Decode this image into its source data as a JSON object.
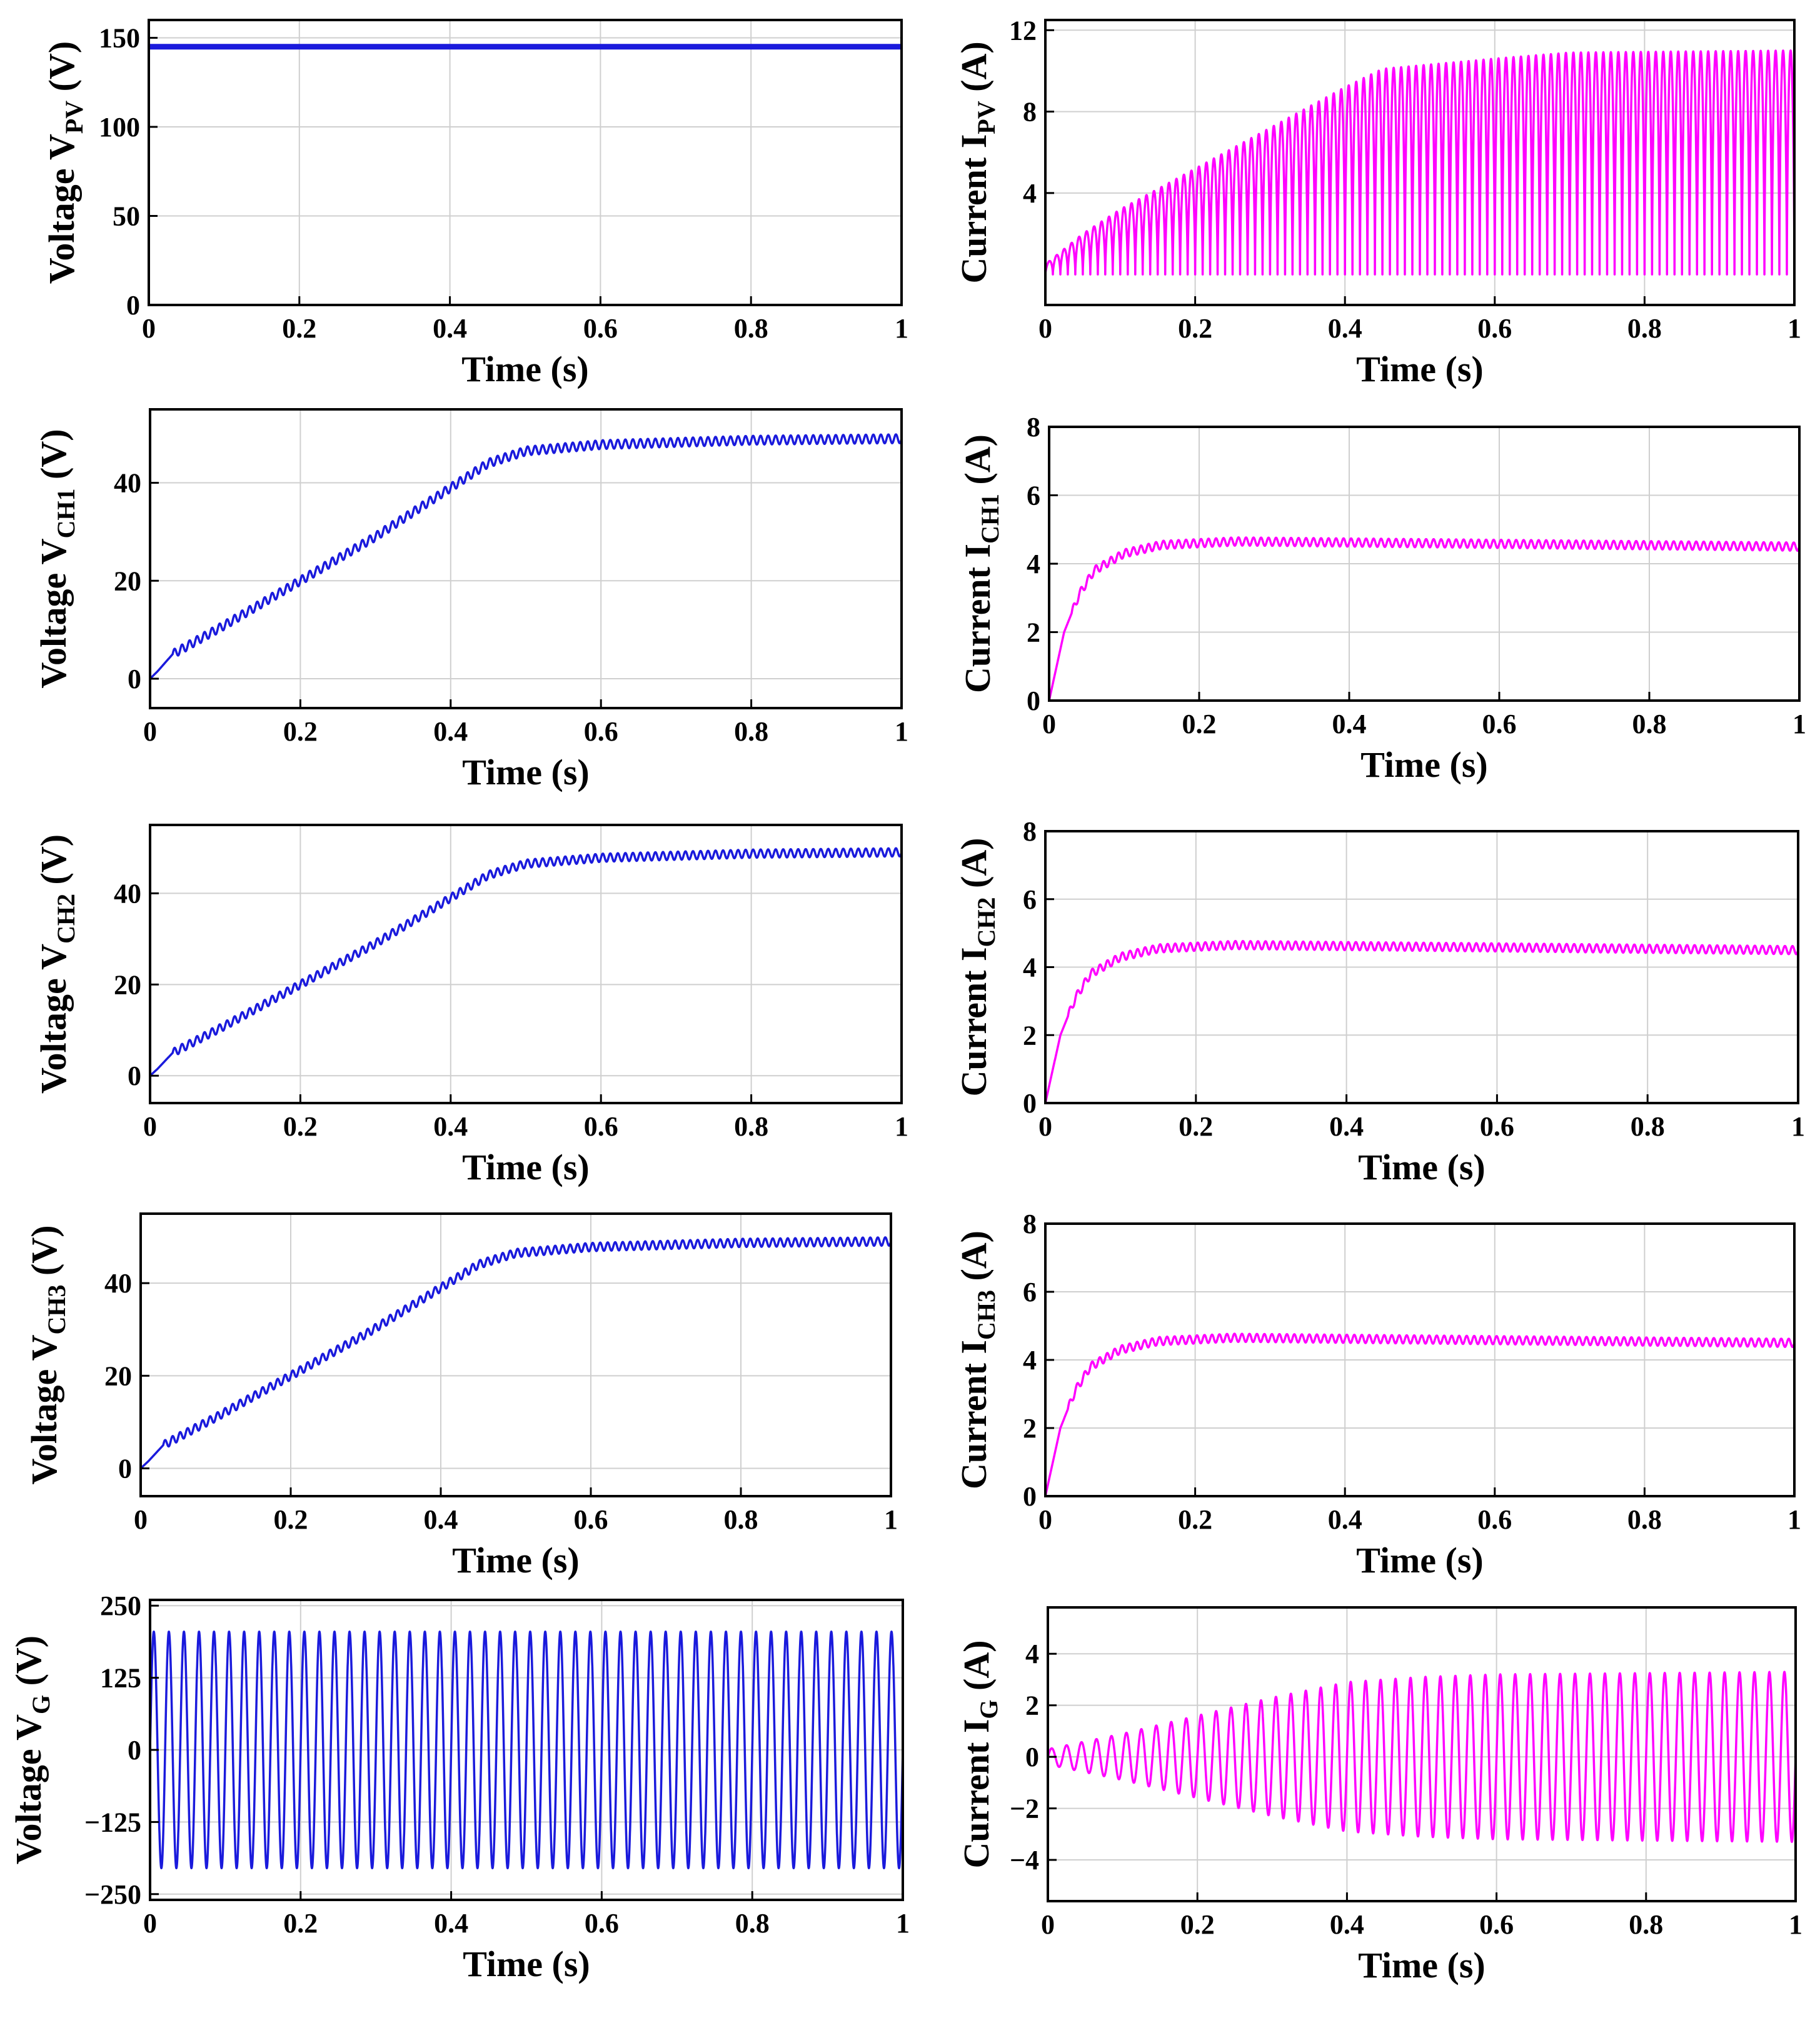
{
  "chart_data": [
    {
      "id": "vpv",
      "type": "line",
      "xlabel": "Time (s)",
      "ylabel": {
        "main": "Voltage V",
        "sub": "PV",
        "unit": " (V)"
      },
      "x_ticks": [
        "0",
        "0.2",
        "0.4",
        "0.6",
        "0.8",
        "1"
      ],
      "y_ticks": [
        {
          "v": 0,
          "label": "0"
        },
        {
          "v": 50,
          "label": "50"
        },
        {
          "v": 100,
          "label": "100"
        },
        {
          "v": 150,
          "label": "150"
        }
      ],
      "xlim": [
        0,
        1
      ],
      "ylim": [
        0,
        160
      ],
      "color": "#1a1adc",
      "series": [
        {
          "signal": "constant",
          "value": 145
        }
      ]
    },
    {
      "id": "ipv",
      "type": "line",
      "xlabel": "Time (s)",
      "ylabel": {
        "main": "Current I",
        "sub": "PV",
        "unit": " (A)"
      },
      "x_ticks": [
        "0",
        "0.2",
        "0.4",
        "0.6",
        "0.8",
        "1"
      ],
      "y_ticks": [
        {
          "v": 4,
          "label": "4"
        },
        {
          "v": 8,
          "label": "8"
        },
        {
          "v": 12,
          "label": "12"
        }
      ],
      "xlim": [
        0,
        1
      ],
      "ylim": [
        -1.5,
        12.5
      ],
      "color": "#ff00ff",
      "series": [
        {
          "signal": "pulsed_ripple",
          "frequency_hz": 100,
          "low": 0,
          "envelope": [
            [
              0,
              0.5
            ],
            [
              0.05,
              2
            ],
            [
              0.1,
              3.2
            ],
            [
              0.2,
              5.2
            ],
            [
              0.3,
              7.2
            ],
            [
              0.4,
              9.2
            ],
            [
              0.45,
              10.1
            ],
            [
              0.6,
              10.6
            ],
            [
              0.7,
              10.9
            ],
            [
              1.0,
              11.0
            ]
          ]
        }
      ]
    },
    {
      "id": "vch1",
      "type": "line",
      "xlabel": "Time (s)",
      "ylabel": {
        "main": "Voltage V",
        "sub": "CH1",
        "unit": " (V)"
      },
      "x_ticks": [
        "0",
        "0.2",
        "0.4",
        "0.6",
        "0.8",
        "1"
      ],
      "y_ticks": [
        {
          "v": 0,
          "label": "0"
        },
        {
          "v": 20,
          "label": "20"
        },
        {
          "v": 40,
          "label": "40"
        }
      ],
      "xlim": [
        0,
        1
      ],
      "ylim": [
        -6,
        55
      ],
      "color": "#1a1adc",
      "series": [
        {
          "signal": "ripple",
          "ripple_hz": 100,
          "ripple_amp": 0.9,
          "points": [
            [
              0,
              0
            ],
            [
              0.01,
              1.5
            ],
            [
              0.03,
              5
            ],
            [
              0.1,
              11
            ],
            [
              0.2,
              20
            ],
            [
              0.3,
              29
            ],
            [
              0.4,
              39
            ],
            [
              0.45,
              44
            ],
            [
              0.5,
              46.5
            ],
            [
              0.6,
              47.8
            ],
            [
              0.8,
              48.7
            ],
            [
              1.0,
              49
            ]
          ]
        }
      ]
    },
    {
      "id": "ich1",
      "type": "line",
      "xlabel": "Time (s)",
      "ylabel": {
        "main": "Current I",
        "sub": "CH1",
        "unit": " (A)"
      },
      "x_ticks": [
        "0",
        "0.2",
        "0.4",
        "0.6",
        "0.8",
        "1"
      ],
      "y_ticks": [
        {
          "v": 0,
          "label": "0"
        },
        {
          "v": 2,
          "label": "2"
        },
        {
          "v": 4,
          "label": "4"
        },
        {
          "v": 6,
          "label": "6"
        },
        {
          "v": 8,
          "label": "8"
        }
      ],
      "xlim": [
        0,
        1
      ],
      "ylim": [
        0,
        8
      ],
      "color": "#ff00ff",
      "series": [
        {
          "signal": "ripple",
          "ripple_hz": 100,
          "ripple_amp": 0.12,
          "points": [
            [
              0,
              0
            ],
            [
              0.01,
              1
            ],
            [
              0.02,
              2
            ],
            [
              0.04,
              3.1
            ],
            [
              0.06,
              3.8
            ],
            [
              0.1,
              4.3
            ],
            [
              0.15,
              4.55
            ],
            [
              0.25,
              4.65
            ],
            [
              0.5,
              4.6
            ],
            [
              1.0,
              4.5
            ]
          ]
        }
      ]
    },
    {
      "id": "vch2",
      "type": "line",
      "xlabel": "Time (s)",
      "ylabel": {
        "main": "Voltage V",
        "sub": "CH2",
        "unit": " (V)"
      },
      "x_ticks": [
        "0",
        "0.2",
        "0.4",
        "0.6",
        "0.8",
        "1"
      ],
      "y_ticks": [
        {
          "v": 0,
          "label": "0"
        },
        {
          "v": 20,
          "label": "20"
        },
        {
          "v": 40,
          "label": "40"
        }
      ],
      "xlim": [
        0,
        1
      ],
      "ylim": [
        -6,
        55
      ],
      "color": "#1a1adc",
      "series": [
        {
          "signal": "ripple",
          "ripple_hz": 100,
          "ripple_amp": 0.9,
          "points": [
            [
              0,
              0
            ],
            [
              0.01,
              1.5
            ],
            [
              0.03,
              5
            ],
            [
              0.1,
              11
            ],
            [
              0.2,
              20
            ],
            [
              0.3,
              29
            ],
            [
              0.4,
              39
            ],
            [
              0.45,
              44
            ],
            [
              0.5,
              46.5
            ],
            [
              0.6,
              47.8
            ],
            [
              0.8,
              48.7
            ],
            [
              1.0,
              49
            ]
          ]
        }
      ]
    },
    {
      "id": "ich2",
      "type": "line",
      "xlabel": "Time (s)",
      "ylabel": {
        "main": "Current I",
        "sub": "CH2",
        "unit": " (A)"
      },
      "x_ticks": [
        "0",
        "0.2",
        "0.4",
        "0.6",
        "0.8",
        "1"
      ],
      "y_ticks": [
        {
          "v": 0,
          "label": "0"
        },
        {
          "v": 2,
          "label": "2"
        },
        {
          "v": 4,
          "label": "4"
        },
        {
          "v": 6,
          "label": "6"
        },
        {
          "v": 8,
          "label": "8"
        }
      ],
      "xlim": [
        0,
        1
      ],
      "ylim": [
        0,
        8
      ],
      "color": "#ff00ff",
      "series": [
        {
          "signal": "ripple",
          "ripple_hz": 100,
          "ripple_amp": 0.12,
          "points": [
            [
              0,
              0
            ],
            [
              0.01,
              1
            ],
            [
              0.02,
              2
            ],
            [
              0.04,
              3.1
            ],
            [
              0.06,
              3.8
            ],
            [
              0.1,
              4.3
            ],
            [
              0.15,
              4.55
            ],
            [
              0.25,
              4.65
            ],
            [
              0.5,
              4.6
            ],
            [
              1.0,
              4.5
            ]
          ]
        }
      ]
    },
    {
      "id": "vch3",
      "type": "line",
      "xlabel": "Time (s)",
      "ylabel": {
        "main": "Voltage V",
        "sub": "CH3",
        "unit": " (V)"
      },
      "x_ticks": [
        "0",
        "0.2",
        "0.4",
        "0.6",
        "0.8",
        "1"
      ],
      "y_ticks": [
        {
          "v": 0,
          "label": "0"
        },
        {
          "v": 20,
          "label": "20"
        },
        {
          "v": 40,
          "label": "40"
        }
      ],
      "xlim": [
        0,
        1
      ],
      "ylim": [
        -6,
        55
      ],
      "color": "#1a1adc",
      "series": [
        {
          "signal": "ripple",
          "ripple_hz": 100,
          "ripple_amp": 0.9,
          "points": [
            [
              0,
              0
            ],
            [
              0.01,
              1.5
            ],
            [
              0.03,
              5
            ],
            [
              0.1,
              11
            ],
            [
              0.2,
              20
            ],
            [
              0.3,
              29
            ],
            [
              0.4,
              39
            ],
            [
              0.45,
              44
            ],
            [
              0.5,
              46.5
            ],
            [
              0.6,
              47.8
            ],
            [
              0.8,
              48.7
            ],
            [
              1.0,
              49
            ]
          ]
        }
      ]
    },
    {
      "id": "ich3",
      "type": "line",
      "xlabel": "Time (s)",
      "ylabel": {
        "main": "Current I",
        "sub": "CH3",
        "unit": " (A)"
      },
      "x_ticks": [
        "0",
        "0.2",
        "0.4",
        "0.6",
        "0.8",
        "1"
      ],
      "y_ticks": [
        {
          "v": 0,
          "label": "0"
        },
        {
          "v": 2,
          "label": "2"
        },
        {
          "v": 4,
          "label": "4"
        },
        {
          "v": 6,
          "label": "6"
        },
        {
          "v": 8,
          "label": "8"
        }
      ],
      "xlim": [
        0,
        1
      ],
      "ylim": [
        0,
        8
      ],
      "color": "#ff00ff",
      "series": [
        {
          "signal": "ripple",
          "ripple_hz": 100,
          "ripple_amp": 0.12,
          "points": [
            [
              0,
              0
            ],
            [
              0.01,
              1
            ],
            [
              0.02,
              2
            ],
            [
              0.04,
              3.1
            ],
            [
              0.06,
              3.8
            ],
            [
              0.1,
              4.3
            ],
            [
              0.15,
              4.55
            ],
            [
              0.25,
              4.65
            ],
            [
              0.5,
              4.6
            ],
            [
              1.0,
              4.5
            ]
          ]
        }
      ]
    },
    {
      "id": "vg",
      "type": "line",
      "xlabel": "Time (s)",
      "ylabel": {
        "main": "Voltage V",
        "sub": "G",
        "unit": " (V)"
      },
      "x_ticks": [
        "0",
        "0.2",
        "0.4",
        "0.6",
        "0.8",
        "1"
      ],
      "y_ticks": [
        {
          "v": -250,
          "label": "−250"
        },
        {
          "v": -125,
          "label": "−125"
        },
        {
          "v": 0,
          "label": "0"
        },
        {
          "v": 125,
          "label": "125"
        },
        {
          "v": 250,
          "label": "250"
        }
      ],
      "xlim": [
        0,
        1
      ],
      "ylim": [
        -260,
        260
      ],
      "color": "#1a1adc",
      "series": [
        {
          "signal": "sine",
          "frequency_hz": 50,
          "amplitude": [
            [
              0,
              205
            ],
            [
              1,
              205
            ]
          ]
        }
      ]
    },
    {
      "id": "ig",
      "type": "line",
      "xlabel": "Time (s)",
      "ylabel": {
        "main": "Current I",
        "sub": "G",
        "unit": " (A)"
      },
      "x_ticks": [
        "0",
        "0.2",
        "0.4",
        "0.6",
        "0.8",
        "1"
      ],
      "y_ticks": [
        {
          "v": -4,
          "label": "−4"
        },
        {
          "v": -2,
          "label": "−2"
        },
        {
          "v": 0,
          "label": "0"
        },
        {
          "v": 2,
          "label": "2"
        },
        {
          "v": 4,
          "label": "4"
        }
      ],
      "xlim": [
        0,
        1
      ],
      "ylim": [
        -5.6,
        5.8
      ],
      "color": "#ff00ff",
      "series": [
        {
          "signal": "sine",
          "frequency_hz": 50,
          "amplitude": [
            [
              0,
              0.3
            ],
            [
              0.1,
              0.9
            ],
            [
              0.2,
              1.6
            ],
            [
              0.3,
              2.3
            ],
            [
              0.4,
              2.9
            ],
            [
              0.5,
              3.1
            ],
            [
              0.6,
              3.2
            ],
            [
              1.0,
              3.3
            ]
          ]
        }
      ]
    }
  ]
}
